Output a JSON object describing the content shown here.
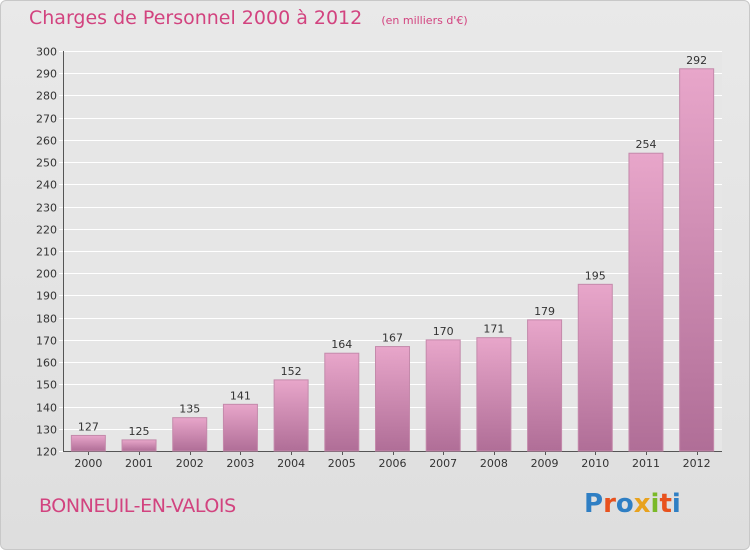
{
  "title": "Charges de Personnel 2000 à 2012",
  "subtitle": "(en milliers d'€)",
  "place_name": "BONNEUIL-EN-VALOIS",
  "logo": {
    "text": "Proxiti",
    "colors": [
      "#2f7fc4",
      "#e8521e",
      "#2f7fc4",
      "#e8a21e",
      "#7ab929",
      "#e8521e",
      "#2f7fc4"
    ]
  },
  "colors": {
    "title": "#d2437f",
    "bar_top": "#e8a6ca",
    "bar_bottom": "#b06e97",
    "background": "#e4e4e4"
  },
  "chart_data": {
    "type": "bar",
    "categories": [
      "2000",
      "2001",
      "2002",
      "2003",
      "2004",
      "2005",
      "2006",
      "2007",
      "2008",
      "2009",
      "2010",
      "2011",
      "2012"
    ],
    "values": [
      127,
      125,
      135,
      141,
      152,
      164,
      167,
      170,
      171,
      179,
      195,
      254,
      292
    ],
    "ylim": [
      120,
      300
    ],
    "yticks": [
      120,
      130,
      140,
      150,
      160,
      170,
      180,
      190,
      200,
      210,
      220,
      230,
      240,
      250,
      260,
      270,
      280,
      290,
      300
    ],
    "grid": true,
    "xlabel": "",
    "ylabel": ""
  }
}
